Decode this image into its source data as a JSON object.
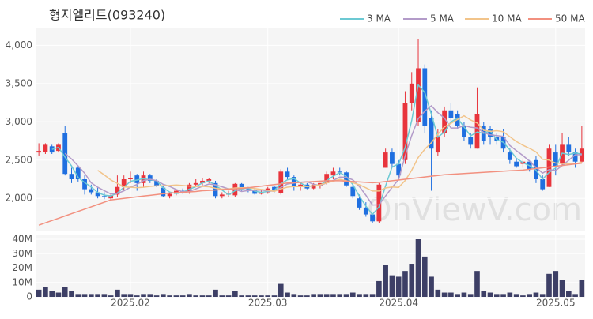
{
  "chart_data": {
    "type": "candlestick",
    "title": "형지엘리트(093240)",
    "watermark": "OnViewV.com",
    "categories": [
      null,
      null,
      null,
      null,
      null,
      null,
      null,
      null,
      null,
      null,
      null,
      null,
      null,
      null,
      "2025.02",
      null,
      null,
      null,
      null,
      null,
      null,
      null,
      null,
      null,
      null,
      null,
      null,
      null,
      null,
      null,
      null,
      null,
      null,
      null,
      null,
      "2025.03",
      null,
      null,
      null,
      null,
      null,
      null,
      null,
      null,
      null,
      null,
      null,
      null,
      null,
      null,
      null,
      null,
      null,
      null,
      null,
      "2025.04",
      null,
      null,
      null,
      null,
      null,
      null,
      null,
      null,
      null,
      null,
      null,
      null,
      null,
      null,
      null,
      null,
      null,
      null,
      null,
      null,
      null,
      null,
      null,
      "2025.05",
      null,
      null,
      null,
      null
    ],
    "open": [
      2600,
      2610,
      2680,
      2620,
      2850,
      2320,
      2400,
      2250,
      2120,
      2080,
      2030,
      2000,
      2050,
      2150,
      2250,
      2300,
      2200,
      2300,
      2230,
      2140,
      2030,
      2060,
      2100,
      2080,
      2180,
      2200,
      2230,
      2200,
      2030,
      2050,
      2040,
      2190,
      2120,
      2100,
      2060,
      2080,
      2150,
      2070,
      2350,
      2280,
      2150,
      2180,
      2130,
      2160,
      2200,
      2300,
      2350,
      2340,
      2150,
      2000,
      1880,
      1790,
      1700,
      2400,
      2600,
      2450,
      2500,
      3250,
      3000,
      3700,
      3050,
      2600,
      2850,
      3150,
      3100,
      2950,
      2800,
      2650,
      2950,
      2900,
      2800,
      2800,
      2600,
      2480,
      2450,
      2480,
      2500,
      2250,
      2150,
      2600,
      2450,
      2700,
      2600,
      2480
    ],
    "high": [
      2720,
      2720,
      2700,
      2720,
      2950,
      2400,
      2420,
      2300,
      2180,
      2150,
      2080,
      2050,
      2300,
      2300,
      2350,
      2320,
      2350,
      2320,
      2250,
      2160,
      2080,
      2120,
      2130,
      2200,
      2250,
      2260,
      2260,
      2230,
      2080,
      2100,
      2200,
      2200,
      2150,
      2120,
      2100,
      2150,
      2160,
      2380,
      2400,
      2300,
      2200,
      2200,
      2200,
      2200,
      2350,
      2400,
      2400,
      2360,
      2200,
      2050,
      1950,
      1800,
      2200,
      2650,
      2650,
      2500,
      3400,
      3650,
      4080,
      3750,
      3150,
      2900,
      3200,
      3250,
      3150,
      3000,
      2850,
      3450,
      3000,
      2950,
      2850,
      2900,
      2650,
      2520,
      2520,
      2500,
      2550,
      2300,
      2700,
      2700,
      2850,
      2800,
      2650,
      2950
    ],
    "low": [
      2560,
      2580,
      2580,
      2600,
      2300,
      2200,
      2220,
      2050,
      2050,
      2000,
      1990,
      1980,
      2020,
      2100,
      2200,
      2100,
      2150,
      2200,
      2150,
      2020,
      2000,
      2040,
      2060,
      2060,
      2150,
      2170,
      2200,
      2000,
      2000,
      2020,
      2020,
      2100,
      2080,
      2050,
      2050,
      2060,
      2080,
      2050,
      2250,
      2100,
      2100,
      2120,
      2120,
      2130,
      2180,
      2250,
      2300,
      2150,
      2000,
      1850,
      1760,
      1680,
      1680,
      2400,
      2400,
      2250,
      2450,
      3150,
      2950,
      2850,
      2100,
      2550,
      2800,
      3000,
      2900,
      2750,
      2650,
      2650,
      2700,
      2700,
      2700,
      2600,
      2450,
      2400,
      2400,
      2350,
      2200,
      2100,
      2150,
      2300,
      2420,
      2550,
      2400,
      2470
    ],
    "close": [
      2620,
      2700,
      2600,
      2700,
      2320,
      2250,
      2250,
      2120,
      2080,
      2030,
      2020,
      2040,
      2150,
      2250,
      2270,
      2200,
      2300,
      2230,
      2160,
      2030,
      2060,
      2100,
      2080,
      2180,
      2200,
      2230,
      2250,
      2030,
      2050,
      2060,
      2190,
      2120,
      2100,
      2060,
      2080,
      2130,
      2100,
      2350,
      2280,
      2150,
      2180,
      2130,
      2180,
      2200,
      2320,
      2350,
      2340,
      2170,
      2030,
      1880,
      1790,
      1700,
      2180,
      2600,
      2450,
      2300,
      3250,
      3500,
      3700,
      2950,
      2650,
      2800,
      3150,
      3050,
      2950,
      2800,
      2700,
      3100,
      2750,
      2800,
      2750,
      2650,
      2500,
      2420,
      2480,
      2380,
      2250,
      2120,
      2650,
      2420,
      2700,
      2600,
      2480,
      2650
    ],
    "up_color": "#e8343c",
    "down_color": "#1f6fe0",
    "ylim": [
      1600,
      4200
    ],
    "yticks": [
      {
        "value": 2000,
        "label": "2,000"
      },
      {
        "value": 2500,
        "label": "2,500"
      },
      {
        "value": 3000,
        "label": "3,000"
      },
      {
        "value": 3500,
        "label": "3,500"
      },
      {
        "value": 4000,
        "label": "4,000"
      }
    ],
    "grid": true,
    "legend": "top-right",
    "series": [
      {
        "name": "3 MA",
        "color": "#6cc9d3",
        "values": [
          null,
          null,
          2640,
          2667,
          2540,
          2423,
          2273,
          2207,
          2150,
          2077,
          2043,
          2030,
          2070,
          2147,
          2223,
          2240,
          2257,
          2243,
          2230,
          2140,
          2083,
          2063,
          2080,
          2120,
          2153,
          2203,
          2227,
          2170,
          2110,
          2047,
          2100,
          2123,
          2137,
          2093,
          2080,
          2090,
          2103,
          2193,
          2243,
          2260,
          2203,
          2153,
          2163,
          2170,
          2233,
          2290,
          2337,
          2287,
          2180,
          2027,
          1900,
          1790,
          1890,
          2160,
          2410,
          2450,
          2667,
          3017,
          3483,
          3383,
          3100,
          2800,
          2867,
          3000,
          3050,
          2933,
          2817,
          2867,
          2850,
          2883,
          2767,
          2733,
          2633,
          2523,
          2467,
          2427,
          2370,
          2250,
          2340,
          2397,
          2590,
          2573,
          2593,
          2577
        ]
      },
      {
        "name": "5 MA",
        "color": "#b39bc9",
        "values": [
          null,
          null,
          null,
          null,
          2588,
          2514,
          2424,
          2328,
          2204,
          2146,
          2100,
          2058,
          2064,
          2098,
          2146,
          2182,
          2234,
          2250,
          2232,
          2184,
          2156,
          2116,
          2086,
          2090,
          2124,
          2158,
          2188,
          2178,
          2152,
          2124,
          2116,
          2090,
          2104,
          2106,
          2110,
          2098,
          2094,
          2144,
          2188,
          2202,
          2212,
          2218,
          2184,
          2168,
          2202,
          2236,
          2278,
          2276,
          2242,
          2154,
          2042,
          1914,
          1916,
          2030,
          2144,
          2246,
          2556,
          2820,
          3040,
          3140,
          3210,
          3120,
          3050,
          2920,
          2920,
          2950,
          2930,
          2920,
          2860,
          2830,
          2820,
          2810,
          2690,
          2624,
          2560,
          2486,
          2406,
          2330,
          2376,
          2364,
          2428,
          2498,
          2570,
          2570
        ]
      },
      {
        "name": "10 MA",
        "color": "#f2c48a",
        "values": [
          null,
          null,
          null,
          null,
          null,
          null,
          null,
          null,
          null,
          2367,
          2307,
          2241,
          2196,
          2151,
          2146,
          2141,
          2146,
          2157,
          2165,
          2165,
          2169,
          2175,
          2168,
          2161,
          2154,
          2157,
          2152,
          2132,
          2121,
          2124,
          2137,
          2139,
          2141,
          2129,
          2117,
          2107,
          2092,
          2124,
          2147,
          2156,
          2155,
          2156,
          2164,
          2178,
          2202,
          2224,
          2248,
          2230,
          2205,
          2178,
          2139,
          2096,
          2096,
          2136,
          2149,
          2144,
          2235,
          2368,
          2535,
          2642,
          2728,
          2838,
          2935,
          2980,
          3030,
          3080,
          3025,
          2985,
          2890,
          2875,
          2885,
          2870,
          2805,
          2742,
          2695,
          2653,
          2608,
          2510,
          2500,
          2462,
          2457,
          2452,
          2450,
          2473
        ]
      },
      {
        "name": "50 MA",
        "color": "#f2907f",
        "values": [
          1650,
          1680,
          1710,
          1740,
          1770,
          1800,
          1830,
          1860,
          1890,
          1920,
          1950,
          1980,
          1990,
          2000,
          2010,
          2020,
          2030,
          2040,
          2050,
          2060,
          2070,
          2075,
          2080,
          2085,
          2090,
          2100,
          2105,
          2110,
          2115,
          2120,
          2125,
          2130,
          2140,
          2150,
          2160,
          2170,
          2180,
          2190,
          2200,
          2205,
          2210,
          2215,
          2220,
          2225,
          2230,
          2230,
          2230,
          2225,
          2220,
          2215,
          2210,
          2205,
          2210,
          2220,
          2230,
          2240,
          2250,
          2260,
          2270,
          2280,
          2290,
          2300,
          2310,
          2315,
          2320,
          2325,
          2330,
          2335,
          2340,
          2345,
          2350,
          2355,
          2360,
          2365,
          2370,
          2380,
          2390,
          2400,
          2410,
          2420,
          2430,
          2440,
          2450,
          2460
        ]
      }
    ],
    "volume": {
      "color": "#3d3f66",
      "ylim": [
        0,
        40000000
      ],
      "yticks": [
        0,
        {
          "value": 10000000,
          "label": "10M"
        },
        {
          "value": 20000000,
          "label": "20M"
        },
        {
          "value": 30000000,
          "label": "30M"
        },
        {
          "value": 40000000,
          "label": "40M"
        }
      ],
      "values": [
        5000000,
        7000000,
        4000000,
        3000000,
        7000000,
        4000000,
        2000000,
        2000000,
        2000000,
        2000000,
        2000000,
        1000000,
        5000000,
        2000000,
        2000000,
        1000000,
        2000000,
        2000000,
        1000000,
        2000000,
        1000000,
        1000000,
        1000000,
        2000000,
        1000000,
        1000000,
        1000000,
        5000000,
        1000000,
        1000000,
        4000000,
        1000000,
        1000000,
        1000000,
        1000000,
        1000000,
        1000000,
        9000000,
        3000000,
        2000000,
        1000000,
        1000000,
        2000000,
        2000000,
        2000000,
        2000000,
        2000000,
        2000000,
        3000000,
        2000000,
        2000000,
        2000000,
        11000000,
        22000000,
        15000000,
        14000000,
        18000000,
        23000000,
        40000000,
        28000000,
        14000000,
        5000000,
        3000000,
        3000000,
        2000000,
        3000000,
        2000000,
        18000000,
        4000000,
        3000000,
        2000000,
        2000000,
        3000000,
        2000000,
        1000000,
        2000000,
        3000000,
        2000000,
        16000000,
        18000000,
        12000000,
        4000000,
        2000000,
        12000000
      ]
    }
  }
}
